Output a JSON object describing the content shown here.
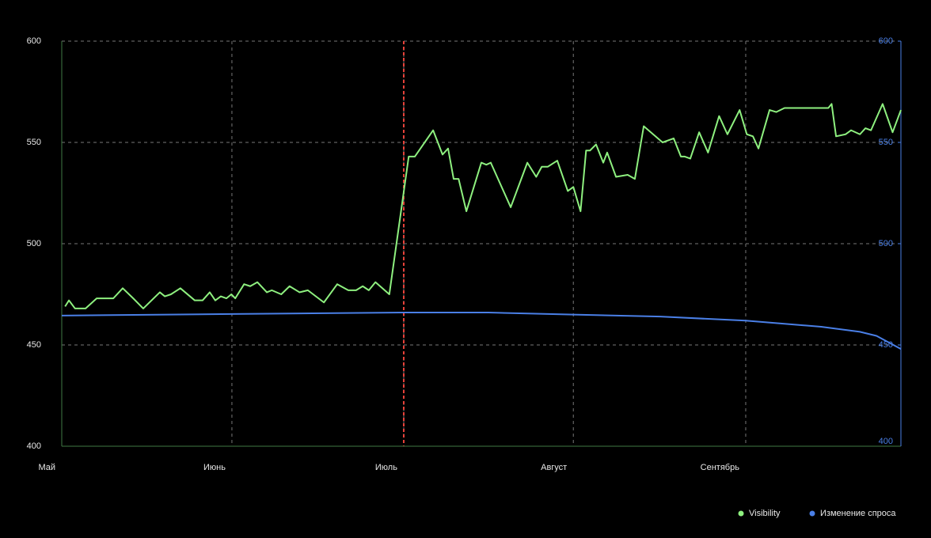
{
  "chart_data": {
    "type": "line",
    "xlim": [
      0,
      151.4
    ],
    "xticks": [
      {
        "value": 0,
        "label": "Май"
      },
      {
        "value": 30.7,
        "label": "Июнь"
      },
      {
        "value": 61.7,
        "label": "Июль"
      },
      {
        "value": 92.3,
        "label": "Август"
      },
      {
        "value": 123.4,
        "label": "Сентябрь"
      }
    ],
    "ylim": [
      400,
      600
    ],
    "yticks": [
      400,
      450,
      500,
      550,
      600
    ],
    "y2lim": [
      400,
      600
    ],
    "y2ticks": [
      400,
      450,
      500,
      550,
      600
    ],
    "grid": true,
    "legend": "bottom-right",
    "vline": {
      "value": 61.7,
      "color": "#e8423a"
    },
    "series": [
      {
        "name": "Visibility",
        "color": "#8ef07f",
        "x": [
          0.6,
          1.3,
          2.4,
          4.3,
          6.3,
          9.3,
          11,
          12.9,
          14.7,
          17.7,
          18.6,
          19.7,
          21.4,
          24,
          25.4,
          26.7,
          27.7,
          28.7,
          29.7,
          30.6,
          31.3,
          32.9,
          34,
          35.3,
          37,
          37.9,
          39.6,
          41.1,
          42.9,
          44.4,
          47.3,
          49.7,
          51.7,
          53.1,
          54.3,
          55.4,
          56.6,
          59.1,
          62.6,
          63.7,
          67,
          68.7,
          69.7,
          70.7,
          71.6,
          73,
          75.7,
          76.6,
          77.4,
          81,
          84,
          85.6,
          86.6,
          87.7,
          89.4,
          91.3,
          92.3,
          93.6,
          94.6,
          95.3,
          96.4,
          97.7,
          98.4,
          100,
          102.1,
          103.4,
          105,
          108.4,
          110.4,
          111.7,
          112.4,
          113.4,
          115,
          116.6,
          118.6,
          120.1,
          122.3,
          123.6,
          124.7,
          125.7,
          127.7,
          128.9,
          130.4,
          138.3,
          138.9,
          139.7,
          141.4,
          142.4,
          144,
          145,
          146,
          148.1,
          149.9,
          151.4
        ],
        "values": [
          469,
          472,
          468,
          468,
          473,
          473,
          478,
          473,
          468,
          476,
          474,
          475,
          478,
          472,
          472,
          476,
          472,
          474,
          473,
          475,
          473,
          480,
          479,
          481,
          476,
          477,
          475,
          479,
          476,
          477,
          471,
          480,
          477,
          477,
          479,
          477,
          481,
          475,
          543,
          543,
          556,
          544,
          547,
          532,
          532,
          516,
          540,
          539,
          540,
          518,
          540,
          533,
          538,
          538,
          541,
          526,
          528,
          516,
          546,
          546,
          549,
          540,
          545,
          533,
          534,
          532,
          558,
          550,
          552,
          543,
          543,
          542,
          555,
          545,
          563,
          554,
          566,
          554,
          553,
          547,
          566,
          565,
          567,
          567,
          569,
          553,
          554,
          556,
          554,
          557,
          556,
          569,
          555,
          566
        ]
      },
      {
        "name": "Изменение спроса",
        "color": "#4a7fe6",
        "axis": "y2",
        "x": [
          0,
          30.7,
          61.7,
          77,
          92.3,
          108,
          123.4,
          137,
          144,
          147,
          151.4
        ],
        "values": [
          464.5,
          465.3,
          466,
          466,
          465,
          464,
          462,
          459,
          456.5,
          454.5,
          448
        ]
      }
    ]
  }
}
